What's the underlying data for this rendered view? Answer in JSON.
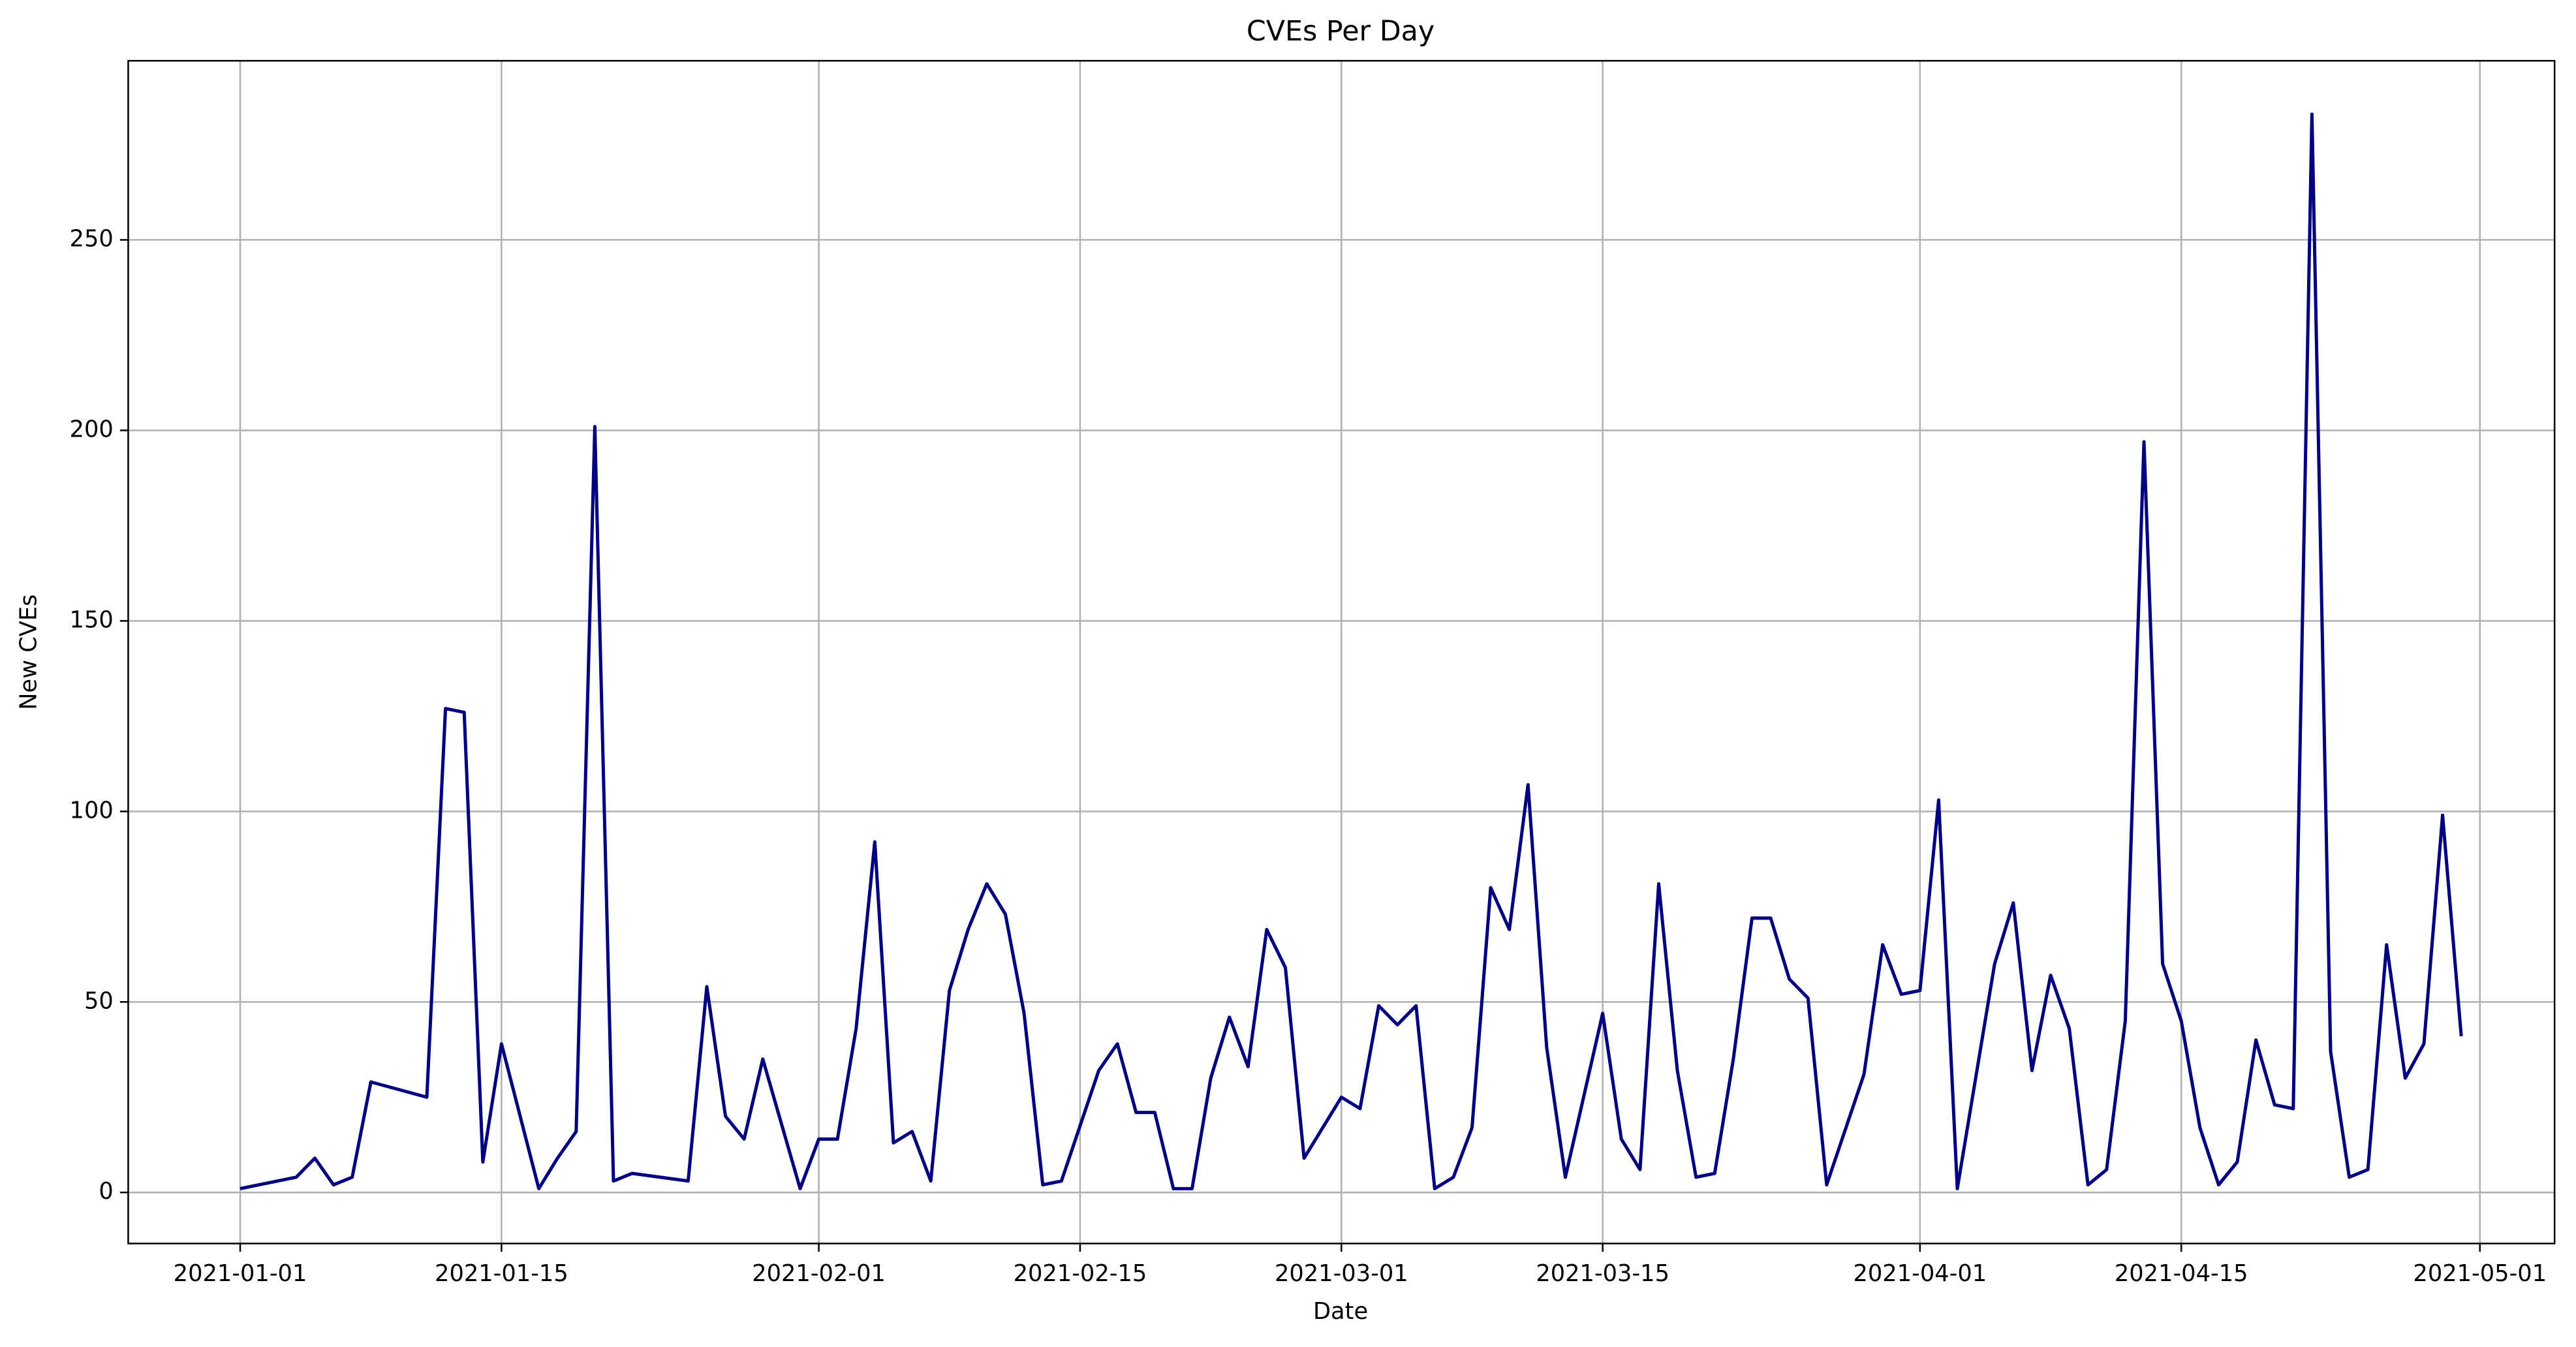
{
  "chart_data": {
    "type": "line",
    "title": "CVEs Per Day",
    "x_label": "Date",
    "y_label": "New CVEs",
    "color": "#000080",
    "grid": true,
    "x": [
      "2021-01-01",
      "2021-01-04",
      "2021-01-05",
      "2021-01-06",
      "2021-01-07",
      "2021-01-08",
      "2021-01-11",
      "2021-01-12",
      "2021-01-13",
      "2021-01-14",
      "2021-01-15",
      "2021-01-17",
      "2021-01-18",
      "2021-01-19",
      "2021-01-20",
      "2021-01-21",
      "2021-01-22",
      "2021-01-25",
      "2021-01-26",
      "2021-01-27",
      "2021-01-28",
      "2021-01-29",
      "2021-01-31",
      "2021-02-01",
      "2021-02-02",
      "2021-02-03",
      "2021-02-04",
      "2021-02-05",
      "2021-02-06",
      "2021-02-07",
      "2021-02-08",
      "2021-02-09",
      "2021-02-10",
      "2021-02-11",
      "2021-02-12",
      "2021-02-13",
      "2021-02-14",
      "2021-02-16",
      "2021-02-17",
      "2021-02-18",
      "2021-02-19",
      "2021-02-20",
      "2021-02-21",
      "2021-02-22",
      "2021-02-23",
      "2021-02-24",
      "2021-02-25",
      "2021-02-26",
      "2021-02-27",
      "2021-03-01",
      "2021-03-02",
      "2021-03-03",
      "2021-03-04",
      "2021-03-05",
      "2021-03-06",
      "2021-03-07",
      "2021-03-08",
      "2021-03-09",
      "2021-03-10",
      "2021-03-11",
      "2021-03-12",
      "2021-03-13",
      "2021-03-15",
      "2021-03-16",
      "2021-03-17",
      "2021-03-18",
      "2021-03-19",
      "2021-03-20",
      "2021-03-21",
      "2021-03-22",
      "2021-03-23",
      "2021-03-24",
      "2021-03-25",
      "2021-03-26",
      "2021-03-27",
      "2021-03-29",
      "2021-03-30",
      "2021-03-31",
      "2021-04-01",
      "2021-04-02",
      "2021-04-03",
      "2021-04-05",
      "2021-04-06",
      "2021-04-07",
      "2021-04-08",
      "2021-04-09",
      "2021-04-10",
      "2021-04-11",
      "2021-04-12",
      "2021-04-13",
      "2021-04-14",
      "2021-04-15",
      "2021-04-16",
      "2021-04-17",
      "2021-04-18",
      "2021-04-19",
      "2021-04-20",
      "2021-04-21",
      "2021-04-22",
      "2021-04-23",
      "2021-04-24",
      "2021-04-25",
      "2021-04-26",
      "2021-04-27",
      "2021-04-28",
      "2021-04-29",
      "2021-04-30"
    ],
    "values": [
      1,
      4,
      9,
      2,
      4,
      29,
      25,
      127,
      126,
      8,
      39,
      1,
      9,
      16,
      201,
      3,
      5,
      3,
      54,
      20,
      14,
      35,
      1,
      14,
      14,
      43,
      92,
      13,
      16,
      3,
      53,
      69,
      81,
      73,
      47,
      2,
      3,
      32,
      39,
      21,
      21,
      1,
      1,
      30,
      46,
      33,
      69,
      59,
      9,
      25,
      22,
      49,
      44,
      49,
      1,
      4,
      17,
      80,
      69,
      107,
      38,
      4,
      47,
      14,
      6,
      81,
      32,
      4,
      5,
      35,
      72,
      72,
      56,
      51,
      2,
      31,
      65,
      52,
      53,
      103,
      1,
      60,
      76,
      32,
      57,
      43,
      2,
      6,
      45,
      197,
      60,
      45,
      17,
      2,
      8,
      40,
      23,
      22,
      283,
      37,
      4,
      6,
      65,
      30,
      39,
      99,
      41
    ],
    "xlim": [
      "2020-12-26",
      "2021-05-05"
    ],
    "xticks": [
      "2021-01-01",
      "2021-01-15",
      "2021-02-01",
      "2021-02-15",
      "2021-03-01",
      "2021-03-15",
      "2021-04-01",
      "2021-04-15",
      "2021-05-01"
    ],
    "ylim": [
      -13.4,
      297
    ],
    "yticks": [
      0,
      50,
      100,
      150,
      200,
      250
    ]
  }
}
